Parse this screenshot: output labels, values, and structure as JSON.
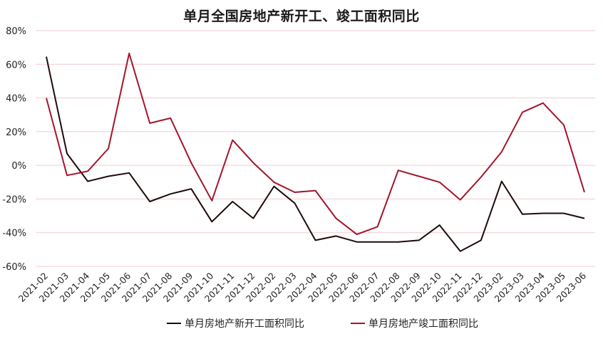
{
  "chart_data": {
    "type": "line",
    "title": "单月全国房地产新开工、竣工面积同比",
    "xlabel": "",
    "ylabel": "",
    "x": [
      "2021-02",
      "2021-03",
      "2021-04",
      "2021-05",
      "2021-06",
      "2021-07",
      "2021-08",
      "2021-09",
      "2021-10",
      "2021-11",
      "2021-12",
      "2022-02",
      "2022-03",
      "2022-04",
      "2022-05",
      "2022-06",
      "2022-07",
      "2022-08",
      "2022-09",
      "2022-10",
      "2022-11",
      "2022-12",
      "2023-02",
      "2023-03",
      "2023-04",
      "2023-05",
      "2023-06"
    ],
    "ylim": [
      -60,
      80
    ],
    "yticks": [
      "80%",
      "60%",
      "40%",
      "20%",
      "0%",
      "-20%",
      "-40%",
      "-60%"
    ],
    "grid": true,
    "legend_position": "bottom",
    "series": [
      {
        "name": "单月房地产新开工面积同比",
        "color": "#1f0a0a",
        "values": [
          64.5,
          7,
          -9.5,
          -6.5,
          -4.5,
          -21.5,
          -17,
          -14,
          -33.5,
          -21.5,
          -31.5,
          -12.5,
          -22.5,
          -44.5,
          -42,
          -45.5,
          -45.5,
          -45.5,
          -44.5,
          -35.5,
          -51,
          -44.5,
          -9.5,
          -29,
          -28.5,
          -28.5,
          -31.5
        ]
      },
      {
        "name": "单月房地产竣工面积同比",
        "color": "#a3152b",
        "values": [
          40,
          -6,
          -3.5,
          10,
          66.5,
          25,
          28,
          1.5,
          -21,
          15,
          1.5,
          -10,
          -16,
          -15,
          -31.5,
          -41,
          -36.5,
          -3,
          -6.5,
          -10,
          -20.5,
          -7,
          8,
          31.5,
          37,
          24,
          -16
        ]
      }
    ]
  }
}
